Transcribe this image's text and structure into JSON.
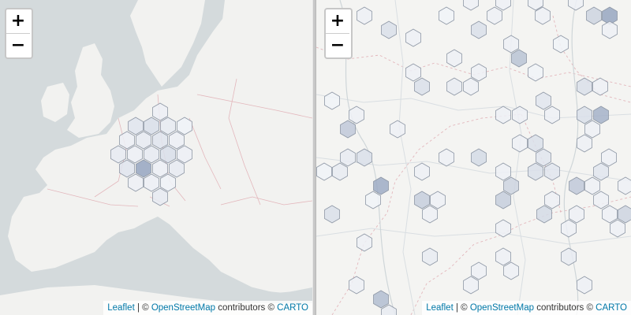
{
  "maps": [
    {
      "id": "left",
      "zoom_in_label": "+",
      "zoom_out_label": "−",
      "attribution": {
        "leaflet": "Leaflet",
        "sep": " | © ",
        "osm": "OpenStreetMap",
        "contrib": " contributors © ",
        "carto": "CARTO"
      }
    },
    {
      "id": "right",
      "zoom_in_label": "+",
      "zoom_out_label": "−",
      "attribution": {
        "leaflet": "Leaflet",
        "sep": " | © ",
        "osm": "OpenStreetMap",
        "contrib": " contributors © ",
        "carto": "CARTO"
      }
    }
  ],
  "colors": {
    "land": "#f2f2f0",
    "water": "#d4dadc",
    "border": "#e3b7bc",
    "hex_stroke": "#8f98a6",
    "hex_low": "#f4f6fa",
    "hex_high": "#6f84a8",
    "attribution_link": "#0078a8"
  },
  "hexbin_levels_description": "normalized intensity 0-1 per hexagon"
}
